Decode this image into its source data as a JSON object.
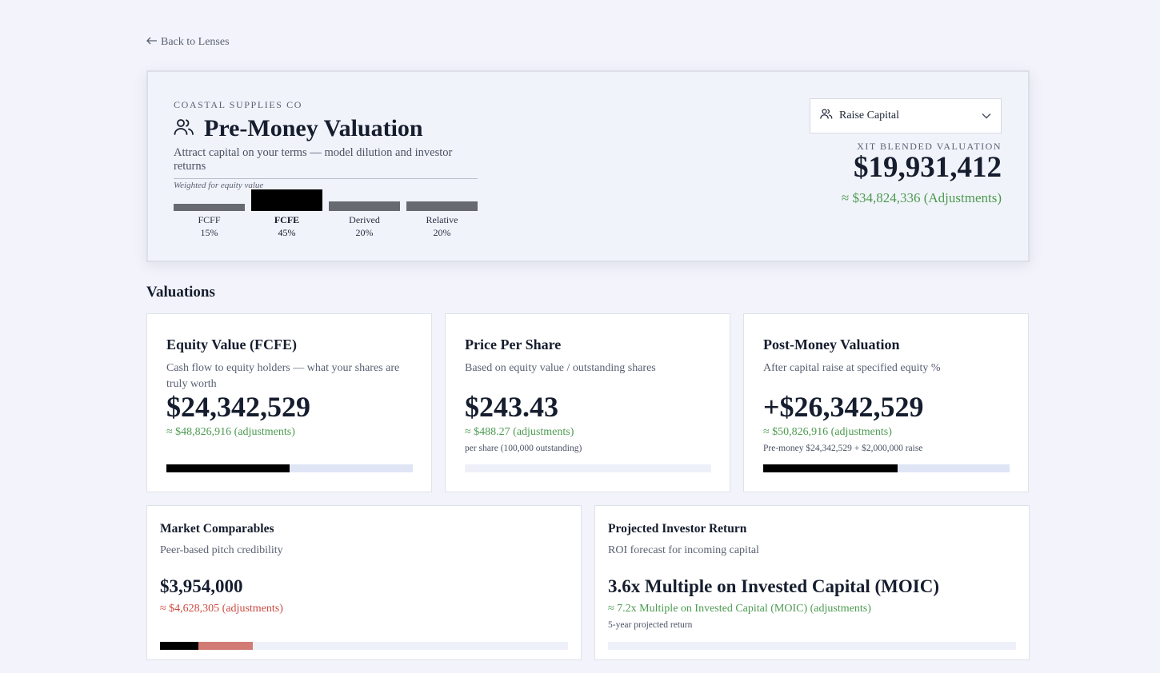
{
  "back_link": "Back to Lenses",
  "hero": {
    "company": "COASTAL SUPPLIES CO",
    "title": "Pre-Money Valuation",
    "subtitle": "Attract capital on your terms — model dilution and investor returns",
    "weighted_caption": "Weighted for equity value",
    "weights": [
      {
        "label": "FCFF",
        "pct": "15%",
        "value": 0.15,
        "active": false
      },
      {
        "label": "FCFE",
        "pct": "45%",
        "value": 0.45,
        "active": true
      },
      {
        "label": "Derived",
        "pct": "20%",
        "value": 0.2,
        "active": false
      },
      {
        "label": "Relative",
        "pct": "20%",
        "value": 0.2,
        "active": false
      }
    ],
    "dropdown": {
      "value": "Raise Capital",
      "icon": "users-icon"
    },
    "blend_label": "XIT BLENDED VALUATION",
    "blend_value": "$19,931,412",
    "blend_adj": "≈ $34,824,336 (Adjustments)"
  },
  "section_title": "Valuations",
  "cards": {
    "equity": {
      "title": "Equity Value (FCFE)",
      "desc": "Cash flow to equity holders — what your shares are truly worth",
      "value": "$24,342,529",
      "adj": "≈ $48,826,916 (adjustments)",
      "progress": 0.5
    },
    "price": {
      "title": "Price Per Share",
      "desc": "Based on equity value / outstanding shares",
      "value": "$243.43",
      "adj": "≈ $488.27 (adjustments)",
      "note": "per share (100,000 outstanding)",
      "progress": 0
    },
    "post": {
      "title": "Post-Money Valuation",
      "desc": "After capital raise at specified equity %",
      "value": "+$26,342,529",
      "adj": "≈ $50,826,916 (adjustments)",
      "note": "Pre-money $24,342,529 + $2,000,000 raise",
      "progress": 0.545
    },
    "market": {
      "title": "Market Comparables",
      "desc": "Peer-based pitch credibility",
      "value": "$3,954,000",
      "adj": "≈ $4,628,305 (adjustments)",
      "progress": 0.094,
      "progress_adj": 0.227
    },
    "investor": {
      "title": "Projected Investor Return",
      "desc": "ROI forecast for incoming capital",
      "value": "3.6x Multiple on Invested Capital (MOIC)",
      "adj": "≈ 7.2x Multiple on Invested Capital (MOIC) (adjustments)",
      "note": "5-year projected return",
      "progress": 0
    }
  },
  "colors": {
    "accent_green": "#4c9a50",
    "accent_red": "#cc4a40",
    "bar_dark": "#000000",
    "bar_adj_red": "#d17b74"
  }
}
